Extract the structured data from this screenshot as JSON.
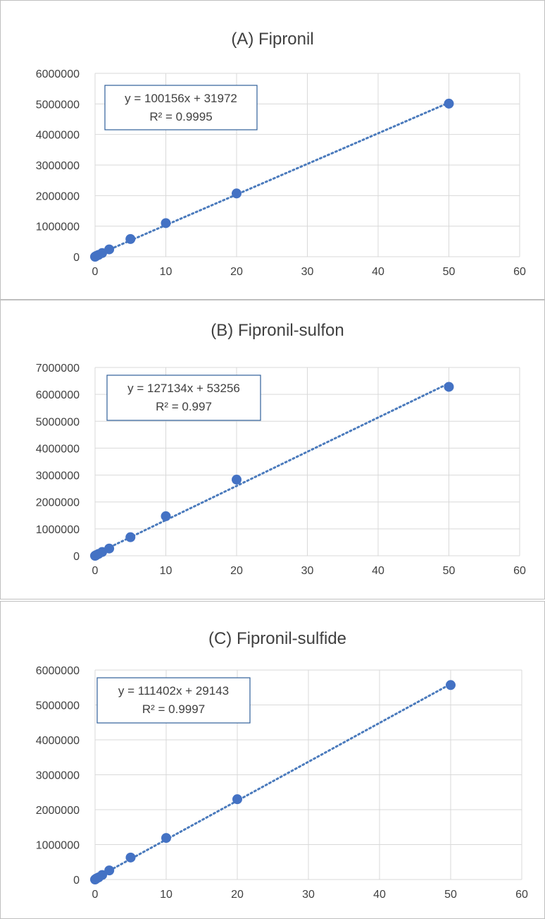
{
  "accent_color": "#4472C4",
  "chart_data": [
    {
      "type": "scatter",
      "title": "(A) Fipronil",
      "xlabel": "",
      "ylabel": "",
      "xlim": [
        0,
        60
      ],
      "ylim": [
        0,
        6000000
      ],
      "x_ticks": [
        0,
        10,
        20,
        30,
        40,
        50,
        60
      ],
      "y_ticks": [
        0,
        1000000,
        2000000,
        3000000,
        4000000,
        5000000,
        6000000
      ],
      "x": [
        0,
        0.1,
        0.2,
        0.5,
        1,
        2,
        5,
        10,
        20,
        50
      ],
      "y": [
        0,
        15000,
        30000,
        60000,
        120000,
        240000,
        580000,
        1100000,
        2070000,
        5010000
      ],
      "trendline": {
        "slope": 100156,
        "intercept": 31972
      },
      "equation": "y = 100156x + 31972",
      "r2": "R² = 0.9995",
      "grid": true,
      "legend": "none"
    },
    {
      "type": "scatter",
      "title": "(B) Fipronil-sulfon",
      "xlabel": "",
      "ylabel": "",
      "xlim": [
        0,
        60
      ],
      "ylim": [
        0,
        7000000
      ],
      "x_ticks": [
        0,
        10,
        20,
        30,
        40,
        50,
        60
      ],
      "y_ticks": [
        0,
        1000000,
        2000000,
        3000000,
        4000000,
        5000000,
        6000000,
        7000000
      ],
      "x": [
        0,
        0.1,
        0.2,
        0.5,
        1,
        2,
        5,
        10,
        20,
        50
      ],
      "y": [
        0,
        15000,
        30000,
        70000,
        140000,
        270000,
        690000,
        1470000,
        2830000,
        6280000
      ],
      "trendline": {
        "slope": 127134,
        "intercept": 53256
      },
      "equation": "y = 127134x + 53256",
      "r2": "R² = 0.997",
      "grid": true,
      "legend": "none"
    },
    {
      "type": "scatter",
      "title": "(C) Fipronil-sulfide",
      "xlabel": "",
      "ylabel": "",
      "xlim": [
        0,
        60
      ],
      "ylim": [
        0,
        6000000
      ],
      "x_ticks": [
        0,
        10,
        20,
        30,
        40,
        50,
        60
      ],
      "y_ticks": [
        0,
        1000000,
        2000000,
        3000000,
        4000000,
        5000000,
        6000000
      ],
      "x": [
        0,
        0.1,
        0.2,
        0.5,
        1,
        2,
        5,
        10,
        20,
        50
      ],
      "y": [
        0,
        15000,
        30000,
        60000,
        130000,
        260000,
        630000,
        1190000,
        2300000,
        5570000
      ],
      "trendline": {
        "slope": 111402,
        "intercept": 29143
      },
      "equation": "y = 111402x + 29143",
      "r2": "R² = 0.9997",
      "grid": true,
      "legend": "none"
    }
  ]
}
